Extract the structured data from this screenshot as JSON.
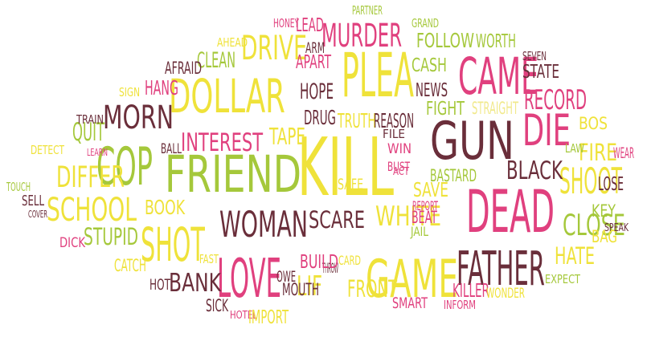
{
  "palette": {
    "yellow": "#efe23a",
    "pink": "#e0407e",
    "green": "#a5c83b",
    "brown": "#6a2e3a",
    "lightyellow": "#f1e98c",
    "lightgreen": "#c8e094"
  },
  "words": [
    {
      "text": "KILL",
      "color": "yellow"
    },
    {
      "text": "GUN",
      "color": "brown"
    },
    {
      "text": "DEAD",
      "color": "pink"
    },
    {
      "text": "FRIEND",
      "color": "green"
    },
    {
      "text": "COP",
      "color": "green"
    },
    {
      "text": "PLEA",
      "color": "yellow"
    },
    {
      "text": "CAME",
      "color": "pink"
    },
    {
      "text": "DOLLAR",
      "color": "yellow"
    },
    {
      "text": "DIE",
      "color": "pink"
    },
    {
      "text": "LOVE",
      "color": "pink"
    },
    {
      "text": "GAME",
      "color": "yellow"
    },
    {
      "text": "FATHER",
      "color": "brown"
    },
    {
      "text": "SHOT",
      "color": "yellow"
    },
    {
      "text": "WOMAN",
      "color": "brown"
    },
    {
      "text": "SHOOT",
      "color": "yellow"
    },
    {
      "text": "MURDER",
      "color": "pink"
    },
    {
      "text": "DRIVE",
      "color": "yellow"
    },
    {
      "text": "SCHOOL",
      "color": "yellow"
    },
    {
      "text": "MORN",
      "color": "brown"
    },
    {
      "text": "DIFFER",
      "color": "yellow"
    },
    {
      "text": "CLOSE",
      "color": "green"
    },
    {
      "text": "INTEREST",
      "color": "pink"
    },
    {
      "text": "WHITE",
      "color": "yellow"
    },
    {
      "text": "SCARE",
      "color": "brown"
    },
    {
      "text": "BANK",
      "color": "brown"
    },
    {
      "text": "RECORD",
      "color": "pink"
    },
    {
      "text": "BLACK",
      "color": "brown"
    },
    {
      "text": "FIRE",
      "color": "yellow"
    },
    {
      "text": "HATE",
      "color": "yellow"
    },
    {
      "text": "LIF",
      "color": "yellow"
    },
    {
      "text": "FRONT",
      "color": "yellow"
    },
    {
      "text": "KILLER",
      "color": "pink"
    },
    {
      "text": "STUPID",
      "color": "green"
    },
    {
      "text": "BOOK",
      "color": "yellow"
    },
    {
      "text": "QUIT",
      "color": "green"
    },
    {
      "text": "TAPE",
      "color": "yellow"
    },
    {
      "text": "HOPE",
      "color": "brown"
    },
    {
      "text": "DRUG",
      "color": "brown"
    },
    {
      "text": "TRUTH",
      "color": "yellow"
    },
    {
      "text": "REASON",
      "color": "brown"
    },
    {
      "text": "NEWS",
      "color": "brown"
    },
    {
      "text": "FIGHT",
      "color": "green"
    },
    {
      "text": "STRAIGHT",
      "color": "lightyellow"
    },
    {
      "text": "STATE",
      "color": "brown"
    },
    {
      "text": "HANG",
      "color": "pink"
    },
    {
      "text": "CLEAN",
      "color": "green"
    },
    {
      "text": "APART",
      "color": "pink"
    },
    {
      "text": "CASH",
      "color": "green"
    },
    {
      "text": "FOLLOW",
      "color": "green"
    },
    {
      "text": "WORTH",
      "color": "green"
    },
    {
      "text": "LEAD",
      "color": "pink"
    },
    {
      "text": "ARM",
      "color": "brown"
    },
    {
      "text": "HONEY",
      "color": "pink"
    },
    {
      "text": "AHEAD",
      "color": "yellow"
    },
    {
      "text": "AFRAID",
      "color": "brown"
    },
    {
      "text": "SIGN",
      "color": "yellow"
    },
    {
      "text": "TRAIN",
      "color": "brown"
    },
    {
      "text": "DETECT",
      "color": "yellow"
    },
    {
      "text": "LEARN",
      "color": "pink"
    },
    {
      "text": "BALL",
      "color": "brown"
    },
    {
      "text": "TOUCH",
      "color": "green"
    },
    {
      "text": "SELL",
      "color": "brown"
    },
    {
      "text": "COVER",
      "color": "brown"
    },
    {
      "text": "DICK",
      "color": "pink"
    },
    {
      "text": "CATCH",
      "color": "yellow"
    },
    {
      "text": "HOT",
      "color": "brown"
    },
    {
      "text": "SICK",
      "color": "brown"
    },
    {
      "text": "HOTEL",
      "color": "pink"
    },
    {
      "text": "IMPORT",
      "color": "yellow"
    },
    {
      "text": "FAST",
      "color": "yellow"
    },
    {
      "text": "OWE",
      "color": "brown"
    },
    {
      "text": "MOUTH",
      "color": "brown"
    },
    {
      "text": "THROW",
      "color": "brown"
    },
    {
      "text": "CARD",
      "color": "yellow"
    },
    {
      "text": "BUILD",
      "color": "pink"
    },
    {
      "text": "SMART",
      "color": "pink"
    },
    {
      "text": "INFORM",
      "color": "pink"
    },
    {
      "text": "WONDER",
      "color": "yellow"
    },
    {
      "text": "EXPECT",
      "color": "green"
    },
    {
      "text": "BAG",
      "color": "yellow"
    },
    {
      "text": "KEY",
      "color": "green"
    },
    {
      "text": "SPEAK",
      "color": "brown"
    },
    {
      "text": "LOSE",
      "color": "brown"
    },
    {
      "text": "WEAR",
      "color": "pink"
    },
    {
      "text": "BOS",
      "color": "yellow"
    },
    {
      "text": "LAW",
      "color": "green"
    },
    {
      "text": "SEVEN",
      "color": "brown"
    },
    {
      "text": "PARTNER",
      "color": "green"
    },
    {
      "text": "GRAND",
      "color": "green"
    },
    {
      "text": "SAFE",
      "color": "yellow"
    },
    {
      "text": "FILE",
      "color": "brown"
    },
    {
      "text": "WIN",
      "color": "pink"
    },
    {
      "text": "BUST",
      "color": "pink"
    },
    {
      "text": "ACT",
      "color": "pink"
    },
    {
      "text": "BASTARD",
      "color": "green"
    },
    {
      "text": "SAVE",
      "color": "yellow"
    },
    {
      "text": "REPORT",
      "color": "pink"
    },
    {
      "text": "BEAT",
      "color": "pink"
    },
    {
      "text": "JAIL",
      "color": "green"
    }
  ]
}
